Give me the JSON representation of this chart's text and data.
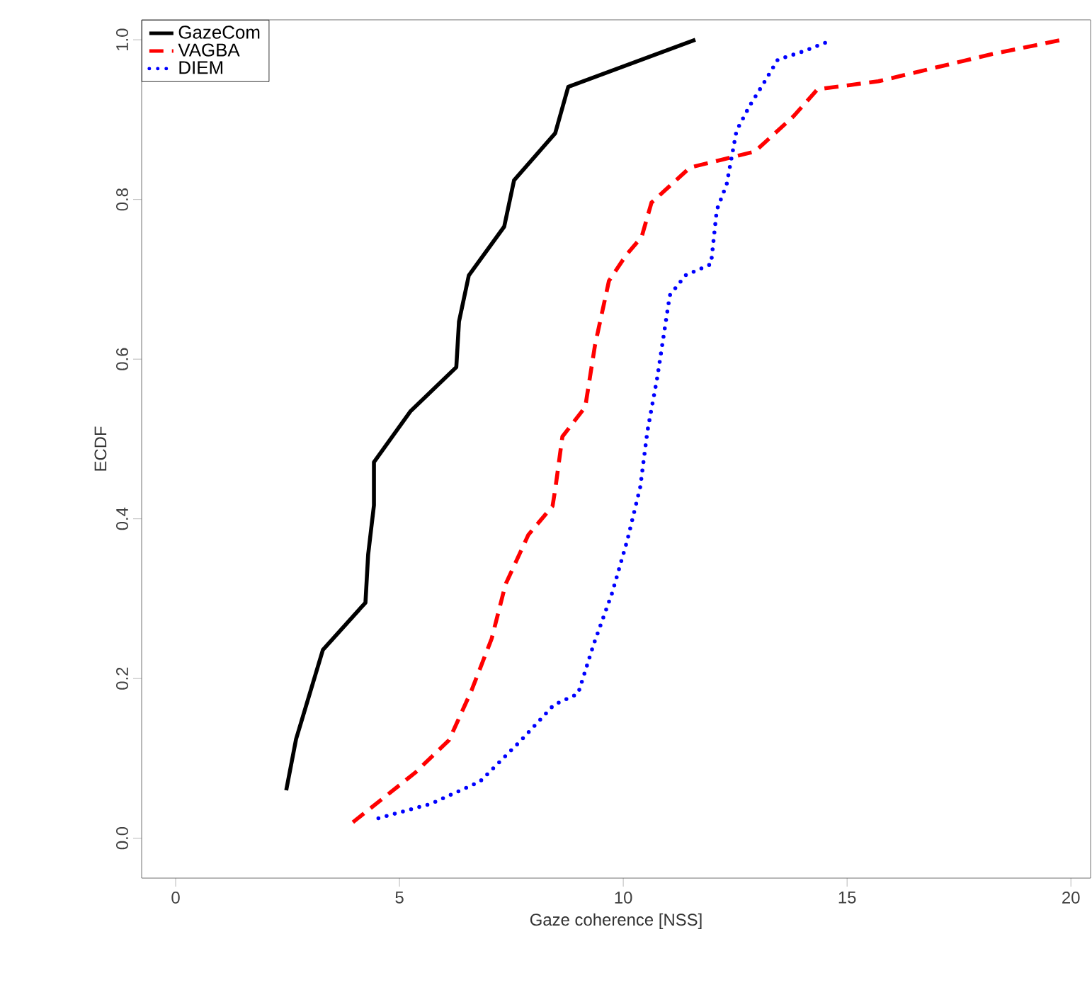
{
  "chart_data": {
    "type": "line",
    "xlabel": "Gaze coherence [NSS]",
    "ylabel": "ECDF",
    "xlim": [
      -0.76,
      20.44
    ],
    "ylim": [
      -0.05,
      1.025
    ],
    "xticks": [
      0,
      5,
      10,
      15,
      20
    ],
    "yticks": [
      {
        "value": 0,
        "label": "0.0"
      },
      {
        "value": 0.2,
        "label": "0.2"
      },
      {
        "value": 0.4,
        "label": "0.4"
      },
      {
        "value": 0.6,
        "label": "0.6"
      },
      {
        "value": 0.8,
        "label": "0.8"
      },
      {
        "value": 1,
        "label": "1.0"
      }
    ],
    "legend": "top left",
    "grid": false,
    "marker": "none",
    "series": [
      {
        "name": "GazeCom",
        "color": "#000000",
        "line_style": "solid",
        "x": [
          2.47,
          2.69,
          3.29,
          4.24,
          4.3,
          4.43,
          4.43,
          5.25,
          6.27,
          6.33,
          6.55,
          7.34,
          7.56,
          8.48,
          8.77,
          11.61
        ],
        "values": [
          0.06,
          0.124,
          0.236,
          0.295,
          0.355,
          0.417,
          0.471,
          0.535,
          0.59,
          0.647,
          0.705,
          0.766,
          0.824,
          0.883,
          0.941,
          1.0
        ]
      },
      {
        "name": "VAGBA",
        "color": "#ff0000",
        "line_style": "dashed",
        "x": [
          3.96,
          5.35,
          6.11,
          6.61,
          7.06,
          7.37,
          7.88,
          8.42,
          8.48,
          8.64,
          9.15,
          9.37,
          9.68,
          10.06,
          10.41,
          10.63,
          11.49,
          12.94,
          13.8,
          14.34,
          15.7,
          18.23,
          19.81
        ],
        "values": [
          0.02,
          0.082,
          0.123,
          0.185,
          0.25,
          0.318,
          0.38,
          0.416,
          0.437,
          0.503,
          0.54,
          0.618,
          0.698,
          0.73,
          0.753,
          0.796,
          0.84,
          0.86,
          0.904,
          0.938,
          0.948,
          0.982,
          1.0
        ]
      },
      {
        "name": "DIEM",
        "color": "#0000ff",
        "line_style": "dotted",
        "x": [
          4.53,
          5.7,
          6.8,
          7.69,
          8.45,
          8.99,
          9.34,
          9.75,
          10.09,
          10.38,
          10.54,
          10.76,
          10.95,
          11.04,
          11.39,
          11.96,
          12.09,
          12.31,
          12.53,
          12.82,
          13.13,
          13.45,
          14.05,
          14.68
        ],
        "values": [
          0.025,
          0.043,
          0.071,
          0.121,
          0.167,
          0.181,
          0.243,
          0.307,
          0.373,
          0.44,
          0.51,
          0.577,
          0.647,
          0.68,
          0.705,
          0.719,
          0.787,
          0.819,
          0.886,
          0.917,
          0.945,
          0.975,
          0.986,
          1.0
        ]
      }
    ]
  }
}
